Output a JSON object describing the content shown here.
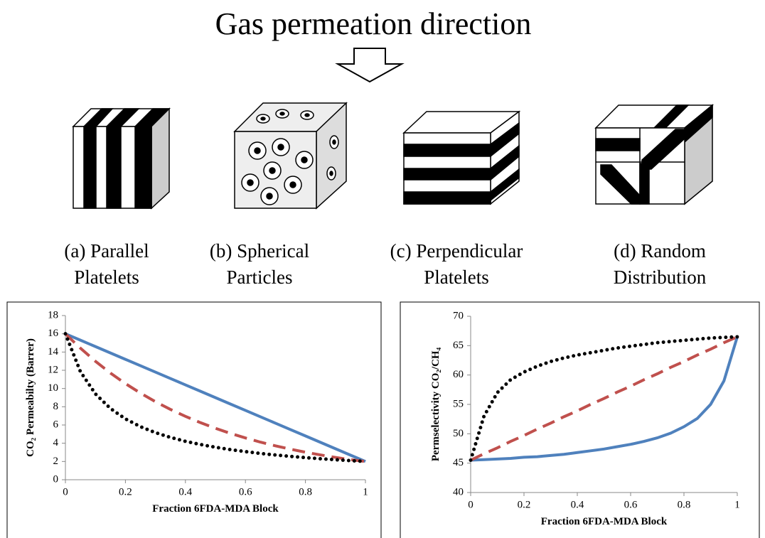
{
  "diagram": {
    "title": "Gas permeation direction",
    "items": [
      {
        "label_lines": [
          "(a) Parallel",
          "Platelets"
        ]
      },
      {
        "label_lines": [
          "(b) Spherical",
          "Particles"
        ]
      },
      {
        "label_lines": [
          "(c) Perpendicular",
          "Platelets"
        ]
      },
      {
        "label_lines": [
          "(d) Random",
          "Distribution"
        ]
      }
    ]
  },
  "chart_data": [
    {
      "type": "line",
      "x_label": "Fraction 6FDA-MDA Block",
      "y_label": "CO₂ Permeabilty (Barrer)",
      "x": [
        0,
        0.05,
        0.1,
        0.15,
        0.2,
        0.25,
        0.3,
        0.35,
        0.4,
        0.45,
        0.5,
        0.55,
        0.6,
        0.65,
        0.7,
        0.75,
        0.8,
        0.85,
        0.9,
        0.95,
        1
      ],
      "xlim": [
        0,
        1
      ],
      "xticks": [
        0,
        0.2,
        0.4,
        0.6,
        0.8,
        1
      ],
      "ylim": [
        0,
        18
      ],
      "yticks": [
        0,
        2,
        4,
        6,
        8,
        10,
        12,
        14,
        16,
        18
      ],
      "grid": false,
      "series": [
        {
          "color": "#4f81bd",
          "dash": "solid",
          "values": [
            16,
            15.3,
            14.6,
            13.9,
            13.2,
            12.5,
            11.8,
            11.1,
            10.4,
            9.7,
            9,
            8.3,
            7.6,
            6.9,
            6.2,
            5.5,
            4.8,
            4.1,
            3.4,
            2.7,
            2
          ]
        },
        {
          "color": "#c0504d",
          "dash": "dashed",
          "values": [
            16,
            14.42,
            12.99,
            11.7,
            10.54,
            9.5,
            8.56,
            7.71,
            6.95,
            6.26,
            5.64,
            5.08,
            4.58,
            4.12,
            3.72,
            3.35,
            3.02,
            2.72,
            2.45,
            2.2,
            2
          ]
        },
        {
          "color": "#000000",
          "dash": "dotted",
          "values": [
            16,
            11.85,
            9.41,
            7.81,
            6.67,
            5.82,
            5.16,
            4.64,
            4.21,
            3.86,
            3.56,
            3.3,
            3.08,
            2.88,
            2.71,
            2.56,
            2.42,
            2.3,
            2.19,
            2.09,
            2
          ]
        }
      ]
    },
    {
      "type": "line",
      "x_label": "Fraction 6FDA-MDA Block",
      "y_label": "Permselectivity CO₂/CH₄",
      "x": [
        0,
        0.05,
        0.1,
        0.15,
        0.2,
        0.25,
        0.3,
        0.35,
        0.4,
        0.45,
        0.5,
        0.55,
        0.6,
        0.65,
        0.7,
        0.75,
        0.8,
        0.85,
        0.9,
        0.95,
        1
      ],
      "xlim": [
        0,
        1
      ],
      "xticks": [
        0,
        0.2,
        0.4,
        0.6,
        0.8,
        1
      ],
      "ylim": [
        40,
        70
      ],
      "yticks": [
        40,
        45,
        50,
        55,
        60,
        65,
        70
      ],
      "grid": false,
      "series": [
        {
          "color": "#4f81bd",
          "dash": "solid",
          "values": [
            45.5,
            45.6,
            45.7,
            45.8,
            46,
            46.1,
            46.3,
            46.5,
            46.8,
            47.1,
            47.4,
            47.8,
            48.2,
            48.7,
            49.3,
            50.1,
            51.2,
            52.6,
            55,
            59,
            66.5
          ]
        },
        {
          "color": "#c0504d",
          "dash": "dashed",
          "values": [
            45.5,
            46.6,
            47.6,
            48.7,
            49.7,
            50.8,
            51.8,
            52.9,
            53.9,
            55,
            56,
            57.1,
            58.1,
            59.2,
            60.2,
            61.3,
            62.3,
            63.4,
            64.4,
            65.5,
            66.5
          ]
        },
        {
          "color": "#000000",
          "dash": "dotted",
          "values": [
            45.5,
            53,
            57,
            59.2,
            60.5,
            61.5,
            62.3,
            62.9,
            63.4,
            63.8,
            64.2,
            64.6,
            64.9,
            65.2,
            65.5,
            65.7,
            65.9,
            66.1,
            66.3,
            66.4,
            66.5
          ]
        }
      ]
    }
  ]
}
